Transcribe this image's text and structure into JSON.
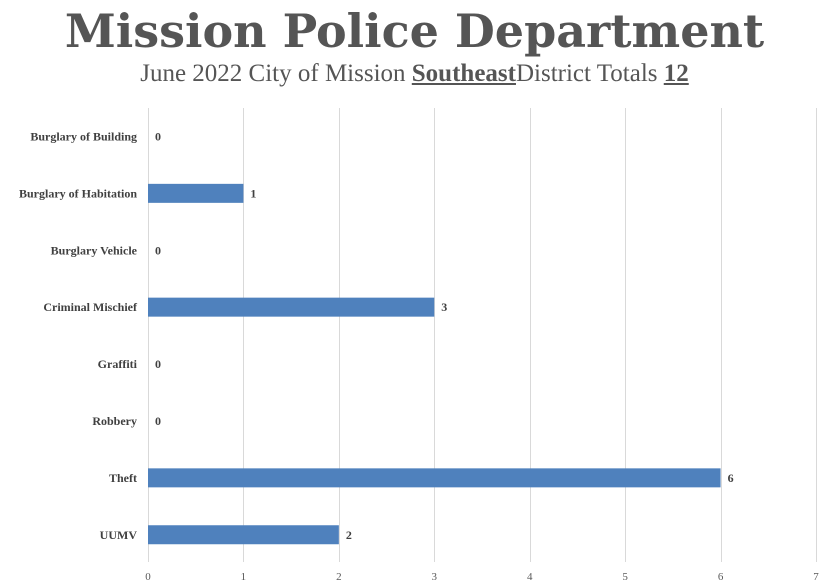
{
  "header": {
    "title": "Mission Police Department",
    "subtitle_prefix": "June 2022 City of Mission",
    "district": "Southeast",
    "subtitle_middle": "District Totals",
    "total": "12"
  },
  "chart_data": {
    "type": "bar",
    "orientation": "horizontal",
    "title": "Mission Police Department",
    "subtitle": "June 2022 City of Mission Southeast District Totals 12",
    "categories": [
      "Burglary of Building",
      "Burglary of Habitation",
      "Burglary Vehicle",
      "Criminal Mischief",
      "Graffiti",
      "Robbery",
      "Theft",
      "UUMV"
    ],
    "values": [
      0,
      1,
      0,
      3,
      0,
      0,
      6,
      2
    ],
    "xlim": [
      0,
      7
    ],
    "xticks": [
      0,
      1,
      2,
      3,
      4,
      5,
      6,
      7
    ],
    "xlabel": "",
    "ylabel": "",
    "grid": true,
    "bar_color": "#4F81BD",
    "grid_color": "#D9D9D9"
  }
}
